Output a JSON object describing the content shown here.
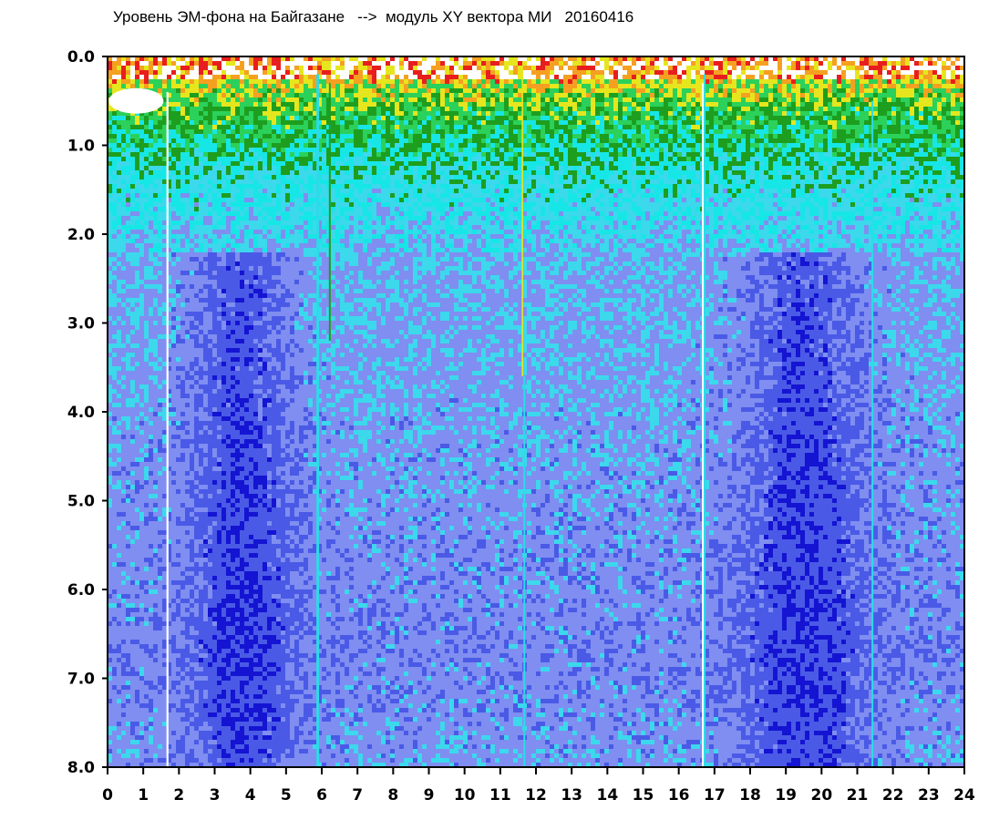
{
  "chart_data": {
    "type": "heatmap",
    "title": "Уровень ЭМ-фона на Байгазане   -->  модуль XY вектора МИ   20160416",
    "xlabel": "",
    "ylabel": "",
    "xlim": [
      0,
      24
    ],
    "ylim": [
      0.0,
      8.0
    ],
    "y_inverted": true,
    "x_tick_labels": [
      "0",
      "1",
      "2",
      "3",
      "4",
      "5",
      "6",
      "7",
      "8",
      "9",
      "10",
      "11",
      "12",
      "13",
      "14",
      "15",
      "16",
      "17",
      "18",
      "19",
      "20",
      "21",
      "22",
      "23",
      "24"
    ],
    "y_tick_labels": [
      "0.0",
      "1.0",
      "2.0",
      "3.0",
      "4.0",
      "5.0",
      "6.0",
      "7.0",
      "8.0"
    ],
    "colormap": [
      "#1414d2",
      "#4a5ae6",
      "#7f8ef0",
      "#3cd8ec",
      "#17e6e6",
      "#1e9e1e",
      "#2bd15a",
      "#e6e61e",
      "#f5a020",
      "#e81e1e",
      "#ffffff"
    ],
    "grid": false,
    "legend": "none"
  }
}
